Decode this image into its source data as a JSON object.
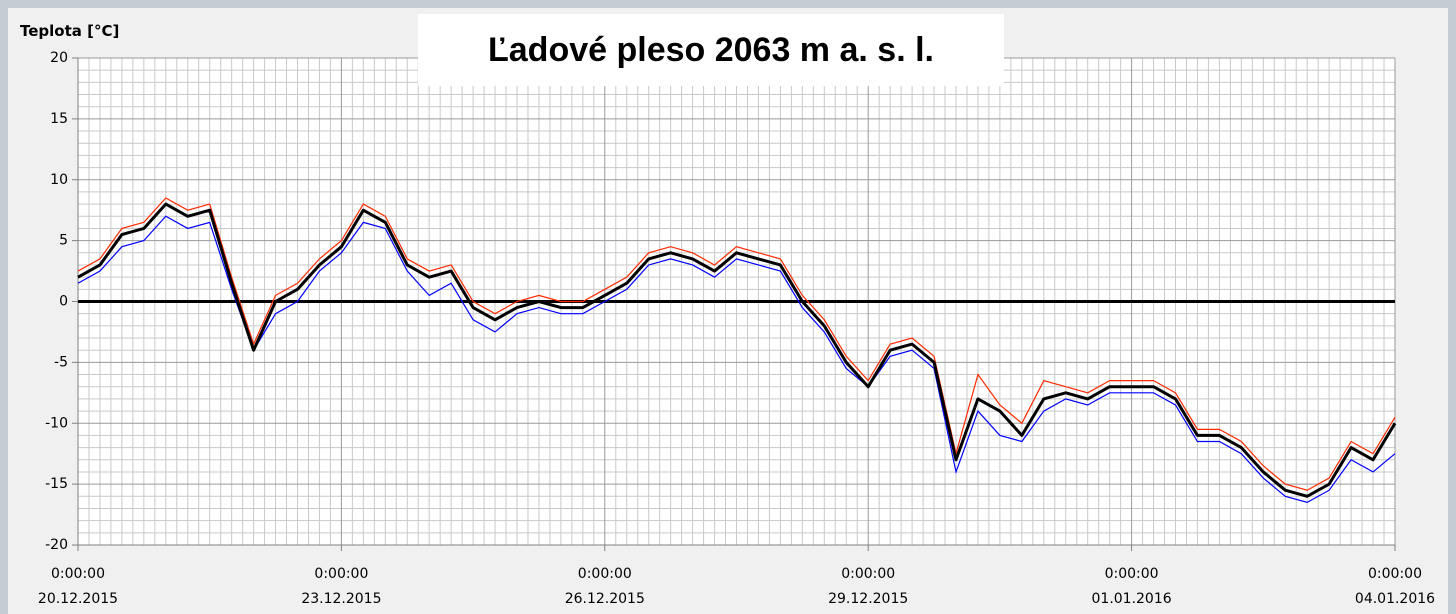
{
  "chart_data": {
    "type": "line",
    "title": "Ľadové pleso 2063 m a. s. l.",
    "y_label": "Teplota [°C]",
    "x": [
      "2015-12-20T00:00",
      "2015-12-20T06:00",
      "2015-12-20T12:00",
      "2015-12-20T18:00",
      "2015-12-21T00:00",
      "2015-12-21T06:00",
      "2015-12-21T12:00",
      "2015-12-21T18:00",
      "2015-12-22T00:00",
      "2015-12-22T06:00",
      "2015-12-22T12:00",
      "2015-12-22T18:00",
      "2015-12-23T00:00",
      "2015-12-23T06:00",
      "2015-12-23T12:00",
      "2015-12-23T18:00",
      "2015-12-24T00:00",
      "2015-12-24T06:00",
      "2015-12-24T12:00",
      "2015-12-24T18:00",
      "2015-12-25T00:00",
      "2015-12-25T06:00",
      "2015-12-25T12:00",
      "2015-12-25T18:00",
      "2015-12-26T00:00",
      "2015-12-26T06:00",
      "2015-12-26T12:00",
      "2015-12-26T18:00",
      "2015-12-27T00:00",
      "2015-12-27T06:00",
      "2015-12-27T12:00",
      "2015-12-27T18:00",
      "2015-12-28T00:00",
      "2015-12-28T06:00",
      "2015-12-28T12:00",
      "2015-12-28T18:00",
      "2015-12-29T00:00",
      "2015-12-29T06:00",
      "2015-12-29T12:00",
      "2015-12-29T18:00",
      "2015-12-30T00:00",
      "2015-12-30T06:00",
      "2015-12-30T12:00",
      "2015-12-30T18:00",
      "2015-12-31T00:00",
      "2015-12-31T06:00",
      "2015-12-31T12:00",
      "2015-12-31T18:00",
      "2016-01-01T00:00",
      "2016-01-01T06:00",
      "2016-01-01T12:00",
      "2016-01-01T18:00",
      "2016-01-02T00:00",
      "2016-01-02T06:00",
      "2016-01-02T12:00",
      "2016-01-02T18:00",
      "2016-01-03T00:00",
      "2016-01-03T06:00",
      "2016-01-03T12:00",
      "2016-01-03T18:00",
      "2016-01-04T00:00"
    ],
    "series": [
      {
        "color": "#ff2a00",
        "values": [
          2.5,
          3.5,
          6,
          6.5,
          8.5,
          7.5,
          8,
          2,
          -3.5,
          0.5,
          1.5,
          3.5,
          5,
          8,
          7,
          3.5,
          2.5,
          3,
          0,
          -1,
          0,
          0.5,
          0,
          0,
          1,
          2,
          4,
          4.5,
          4,
          3,
          4.5,
          4,
          3.5,
          0.5,
          -1.5,
          -4.5,
          -6.5,
          -3.5,
          -3,
          -4.5,
          -12.5,
          -6,
          -8.5,
          -10,
          -6.5,
          -7,
          -7.5,
          -6.5,
          -6.5,
          -6.5,
          -7.5,
          -10.5,
          -10.5,
          -11.5,
          -13.5,
          -15,
          -15.5,
          -14.5,
          -11.5,
          -12.5,
          -9.5
        ]
      },
      {
        "color": "#0000ff",
        "values": [
          1.5,
          2.5,
          4.5,
          5,
          7,
          6,
          6.5,
          1,
          -4,
          -1,
          0,
          2.5,
          4,
          6.5,
          6,
          2.5,
          0.5,
          1.5,
          -1.5,
          -2.5,
          -1,
          -0.5,
          -1,
          -1,
          0,
          1,
          3,
          3.5,
          3,
          2,
          3.5,
          3,
          2.5,
          -0.5,
          -2.5,
          -5.5,
          -7,
          -4.5,
          -4,
          -5.5,
          -14,
          -9,
          -11,
          -11.5,
          -9,
          -8,
          -8.5,
          -7.5,
          -7.5,
          -7.5,
          -8.5,
          -11.5,
          -11.5,
          -12.5,
          -14.5,
          -16,
          -16.5,
          -15.5,
          -13,
          -14,
          -12.5
        ]
      },
      {
        "color": "#000000",
        "values": [
          2,
          3,
          5.5,
          6,
          8,
          7,
          7.5,
          1.5,
          -4,
          0,
          1,
          3,
          4.5,
          7.5,
          6.5,
          3,
          2,
          2.5,
          -0.5,
          -1.5,
          -0.5,
          0,
          -0.5,
          -0.5,
          0.5,
          1.5,
          3.5,
          4,
          3.5,
          2.5,
          4,
          3.5,
          3,
          0,
          -2,
          -5,
          -7,
          -4,
          -3.5,
          -5,
          -13,
          -8,
          -9,
          -11,
          -8,
          -7.5,
          -8,
          -7,
          -7,
          -7,
          -8,
          -11,
          -11,
          -12,
          -14,
          -15.5,
          -16,
          -15,
          -12,
          -13,
          -10
        ]
      }
    ],
    "xlim": [
      "2015-12-20T00:00",
      "2016-01-04T00:00"
    ],
    "xticks": [
      {
        "value": "2015-12-20T00:00",
        "label": "0:00:00 20.12.2015"
      },
      {
        "value": "2015-12-23T00:00",
        "label": "0:00:00 23.12.2015"
      },
      {
        "value": "2015-12-26T00:00",
        "label": "0:00:00 26.12.2015"
      },
      {
        "value": "2015-12-29T00:00",
        "label": "0:00:00 29.12.2015"
      },
      {
        "value": "2016-01-01T00:00",
        "label": "0:00:00 01.01.2016"
      },
      {
        "value": "2016-01-04T00:00",
        "label": "0:00:00 04.01.2016"
      }
    ],
    "ylim": [
      -20,
      20
    ],
    "yticks": [
      20,
      15,
      10,
      5,
      0,
      -5,
      -10,
      -15,
      -20
    ],
    "grid": true,
    "zero_line": true
  }
}
